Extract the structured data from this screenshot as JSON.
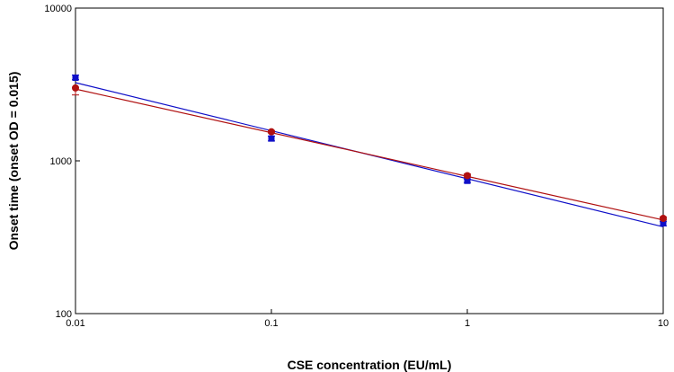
{
  "chart_data": {
    "type": "scatter",
    "title": "",
    "xlabel": "CSE concentration (EU/mL)",
    "ylabel": "Onset time (onset OD = 0.015)",
    "xscale": "log",
    "yscale": "log",
    "xlim": [
      0.01,
      10
    ],
    "ylim": [
      100,
      10000
    ],
    "xticks": [
      0.01,
      0.1,
      1,
      10
    ],
    "xtick_labels": [
      "0.01",
      "0.1",
      "1",
      "10"
    ],
    "yticks": [
      100,
      1000,
      10000
    ],
    "ytick_labels": [
      "100",
      "1000",
      "10000"
    ],
    "grid": false,
    "legend": "none",
    "series": [
      {
        "color": "#1010c8",
        "marker": "square",
        "x": [
          0.01,
          0.1,
          1,
          10
        ],
        "y": [
          3500,
          1400,
          740,
          390
        ],
        "err_low": [
          3400,
          1350,
          720,
          375
        ],
        "err_high": [
          3650,
          1450,
          760,
          400
        ],
        "fit_y_at_xlim": [
          3250,
          370
        ]
      },
      {
        "color": "#b01010",
        "marker": "circle",
        "x": [
          0.01,
          0.1,
          1,
          10
        ],
        "y": [
          3000,
          1550,
          800,
          420
        ],
        "err_low": [
          2700,
          1520,
          780,
          410
        ],
        "err_high": [
          3000,
          1580,
          820,
          430
        ],
        "fit_y_at_xlim": [
          2950,
          410
        ]
      }
    ]
  }
}
